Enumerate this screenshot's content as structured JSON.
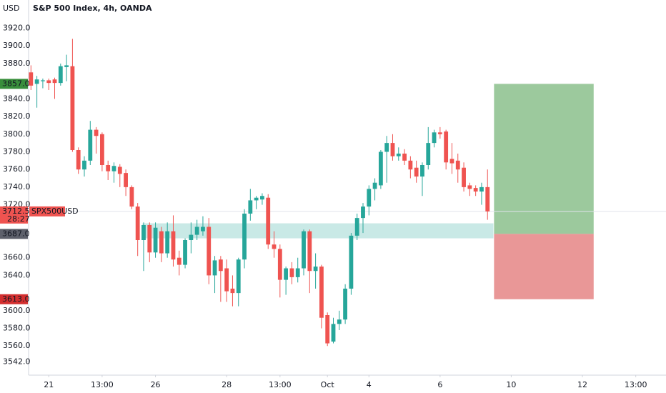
{
  "chart_data": {
    "type": "candlestick",
    "title": "S&P 500 Index, 4h, OANDA",
    "currency": "USD",
    "symbol": "SPX500USD",
    "countdown": "28:27",
    "up_color": "#26a69a",
    "down_color": "#ef5350",
    "x": [
      0,
      1,
      2,
      3,
      4,
      5,
      6,
      7,
      8,
      9,
      10,
      11,
      12,
      13,
      14,
      15,
      16,
      17,
      18,
      19,
      20,
      21,
      22,
      23,
      24,
      25,
      26,
      27,
      28,
      29,
      30,
      31,
      32,
      33,
      34,
      35,
      36,
      37,
      38,
      39,
      40,
      41,
      42,
      43,
      44,
      45,
      46,
      47,
      48,
      49,
      50,
      51,
      52,
      53,
      54,
      55,
      56,
      57,
      58,
      59,
      60,
      61,
      62,
      63,
      64,
      65,
      66,
      67,
      68,
      69,
      70,
      71,
      72,
      73,
      74,
      75,
      76,
      77
    ],
    "open": [
      3870,
      3857,
      3860,
      3861,
      3862,
      3858,
      3876,
      3877,
      3782,
      3760,
      3770,
      3805,
      3800,
      3765,
      3758,
      3763,
      3756,
      3740,
      3718,
      3680,
      3697,
      3666,
      3690,
      3665,
      3690,
      3660,
      3652,
      3680,
      3686,
      3690,
      3695,
      3640,
      3658,
      3648,
      3625,
      3620,
      3658,
      3710,
      3725,
      3726,
      3728,
      3675,
      3670,
      3635,
      3648,
      3638,
      3648,
      3690,
      3645,
      3650,
      3595,
      3565,
      3585,
      3590,
      3625,
      3685,
      3705,
      3718,
      3738,
      3742,
      3780,
      3790,
      3775,
      3778,
      3770,
      3762,
      3752,
      3765,
      3790,
      3802,
      3803,
      3772,
      3770,
      3762,
      3742,
      3739,
      3735,
      3740
    ],
    "high": [
      3878,
      3866,
      3863,
      3863,
      3864,
      3880,
      3890,
      3908,
      3785,
      3775,
      3815,
      3808,
      3802,
      3770,
      3768,
      3766,
      3760,
      3742,
      3722,
      3700,
      3700,
      3700,
      3695,
      3700,
      3708,
      3668,
      3682,
      3700,
      3703,
      3707,
      3705,
      3662,
      3662,
      3658,
      3640,
      3660,
      3715,
      3738,
      3730,
      3733,
      3732,
      3690,
      3675,
      3650,
      3655,
      3660,
      3692,
      3692,
      3665,
      3652,
      3598,
      3592,
      3600,
      3630,
      3688,
      3710,
      3722,
      3742,
      3750,
      3782,
      3798,
      3800,
      3785,
      3783,
      3775,
      3770,
      3768,
      3808,
      3805,
      3808,
      3805,
      3790,
      3778,
      3768,
      3745,
      3742,
      3745,
      3760
    ],
    "low": [
      3850,
      3830,
      3852,
      3850,
      3840,
      3855,
      3860,
      3780,
      3755,
      3752,
      3765,
      3778,
      3758,
      3748,
      3745,
      3740,
      3730,
      3715,
      3662,
      3645,
      3655,
      3660,
      3655,
      3660,
      3650,
      3640,
      3648,
      3665,
      3680,
      3685,
      3630,
      3620,
      3610,
      3610,
      3605,
      3605,
      3648,
      3702,
      3715,
      3720,
      3670,
      3660,
      3615,
      3618,
      3630,
      3632,
      3640,
      3620,
      3625,
      3580,
      3560,
      3563,
      3578,
      3585,
      3618,
      3680,
      3688,
      3708,
      3725,
      3738,
      3745,
      3770,
      3770,
      3765,
      3750,
      3745,
      3730,
      3760,
      3785,
      3795,
      3760,
      3755,
      3745,
      3735,
      3730,
      3730,
      3720,
      3703
    ],
    "close": [
      3855,
      3862,
      3861,
      3858,
      3858,
      3877,
      3878,
      3782,
      3760,
      3770,
      3805,
      3798,
      3765,
      3758,
      3764,
      3755,
      3740,
      3718,
      3680,
      3697,
      3666,
      3694,
      3665,
      3690,
      3658,
      3652,
      3680,
      3686,
      3695,
      3695,
      3640,
      3657,
      3645,
      3622,
      3620,
      3658,
      3710,
      3725,
      3728,
      3730,
      3675,
      3670,
      3635,
      3648,
      3638,
      3648,
      3690,
      3645,
      3650,
      3592,
      3563,
      3585,
      3590,
      3625,
      3685,
      3705,
      3718,
      3738,
      3745,
      3780,
      3790,
      3775,
      3778,
      3770,
      3760,
      3752,
      3765,
      3790,
      3802,
      3800,
      3768,
      3767,
      3760,
      3740,
      3738,
      3735,
      3740,
      3712.5
    ],
    "last_price": {
      "value": 3712.5,
      "label": "3712.5"
    },
    "xlim": [
      -0.4,
      107.1
    ],
    "ylim": [
      3527,
      3952
    ],
    "xticks": [
      {
        "value": 3,
        "label": "21"
      },
      {
        "value": 12,
        "label": "13:00"
      },
      {
        "value": 21,
        "label": "26"
      },
      {
        "value": 33,
        "label": "28"
      },
      {
        "value": 42,
        "label": "13:00"
      },
      {
        "value": 50,
        "label": "Oct"
      },
      {
        "value": 57,
        "label": "4"
      },
      {
        "value": 69,
        "label": "6"
      },
      {
        "value": 81,
        "label": "10"
      },
      {
        "value": 93,
        "label": "12"
      },
      {
        "value": 102,
        "label": "13:00"
      }
    ],
    "yticks": [
      {
        "value": 3920,
        "label": "3920.0"
      },
      {
        "value": 3900,
        "label": "3900.0"
      },
      {
        "value": 3880,
        "label": "3880.0"
      },
      {
        "value": 3840,
        "label": "3840.0"
      },
      {
        "value": 3820,
        "label": "3820.0"
      },
      {
        "value": 3800,
        "label": "3800.0"
      },
      {
        "value": 3780,
        "label": "3780.0"
      },
      {
        "value": 3760,
        "label": "3760.0"
      },
      {
        "value": 3740,
        "label": "3740.0"
      },
      {
        "value": 3720,
        "label": "3720.0"
      },
      {
        "value": 3660,
        "label": "3660.0"
      },
      {
        "value": 3640,
        "label": "3640.0"
      },
      {
        "value": 3600,
        "label": "3600.0"
      },
      {
        "value": 3580,
        "label": "3580.0"
      },
      {
        "value": 3560,
        "label": "3560.0"
      },
      {
        "value": 3542,
        "label": "3542.0"
      }
    ],
    "zone": {
      "low": 3682,
      "high": 3699,
      "from": 18.8,
      "to": 78,
      "color": "#b2dfdb"
    },
    "position": {
      "from": 78.1,
      "to": 94.9,
      "target": {
        "value": 3857,
        "label": "3857.0",
        "color": "#388e3c",
        "fill": "#9cc99d"
      },
      "entry": {
        "value": 3687,
        "label": "3687.0",
        "color": "#5d606b"
      },
      "stop": {
        "value": 3613,
        "label": "3613.0",
        "color": "#d32f2f",
        "fill": "#e99797"
      }
    }
  }
}
